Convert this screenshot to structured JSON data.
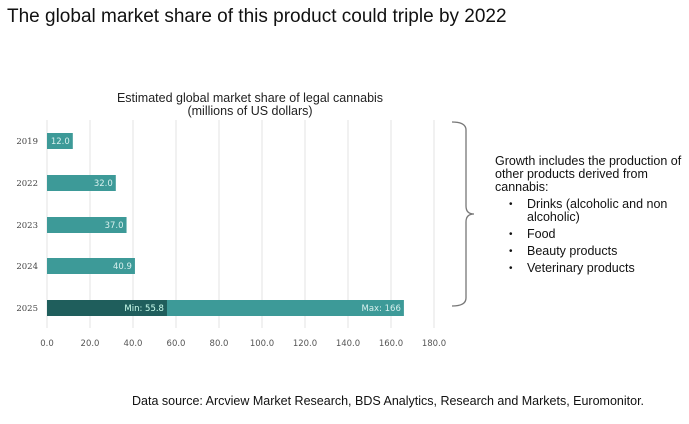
{
  "title": "The global market share of this product could triple by 2022",
  "chart_data": {
    "type": "bar",
    "orientation": "horizontal",
    "title": "Estimated global market share of legal cannabis",
    "subtitle": "(millions of US dollars)",
    "categories": [
      "2019",
      "2022",
      "2023",
      "2024",
      "2025"
    ],
    "values": [
      12.0,
      32.0,
      37.0,
      40.9,
      166
    ],
    "value_labels": [
      "12.0",
      "32.0",
      "37.0",
      "40.9",
      "Max: 166"
    ],
    "range_min": {
      "category": "2025",
      "value": 55.8,
      "label": "Min: 55.8"
    },
    "xlim": [
      0,
      180
    ],
    "xticks": [
      "0.0",
      "20.0",
      "40.0",
      "60.0",
      "80.0",
      "100.0",
      "120.0",
      "140.0",
      "160.0",
      "180.0"
    ],
    "grid": true,
    "colors": {
      "bar": "#3d9a98",
      "min": "#1f5e5c",
      "grid": "#e3e3e3"
    }
  },
  "note": {
    "heading": "Growth includes the production of other products derived from cannabis:",
    "items": [
      "Drinks (alcoholic and non alcoholic)",
      "Food",
      "Beauty products",
      "Veterinary products"
    ]
  },
  "source": "Data source: Arcview Market Research, BDS Analytics, Research and Markets, Euromonitor."
}
